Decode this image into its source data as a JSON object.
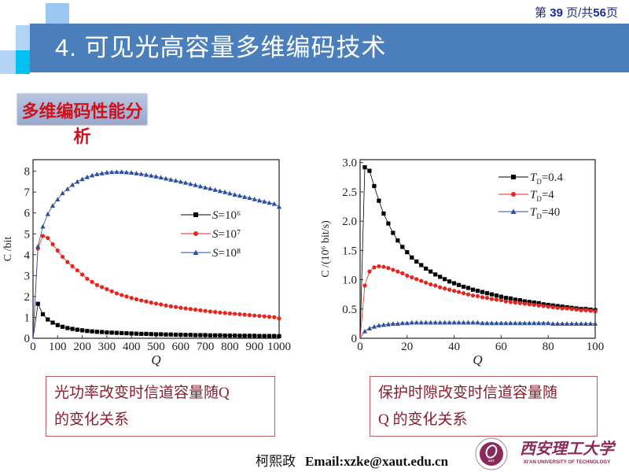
{
  "header": {
    "title": "4. 可见光高容量多维编码技术",
    "page_prefix": "第 ",
    "page_current": "39",
    "page_middle": " 页/共",
    "page_total": "56",
    "page_suffix": "页",
    "bar_color": "#4b7fbc"
  },
  "section": {
    "title": "多维编码性能分析",
    "title_color": "#d0111b"
  },
  "captions": {
    "left_line1": "光功率改变时信道容量随Q",
    "left_line2": "的变化关系",
    "right_line1": "保护时隙改变时信道容量随",
    "right_line2": "Q 的变化关系"
  },
  "footer": {
    "author": "柯熙政",
    "email": "Email:xzke@xaut.edu.cn",
    "logo_text_cn": "西安理工大学",
    "logo_text_en": "XI'AN UNIVERSITY OF TECHNOLOGY",
    "logo_badge": "XUT"
  },
  "chart_data": [
    {
      "type": "line",
      "xlabel": "Q",
      "ylabel": "C /bit",
      "xlim": [
        0,
        1000
      ],
      "ylim": [
        0,
        8.55
      ],
      "xticks": [
        0,
        100,
        200,
        300,
        400,
        500,
        600,
        700,
        800,
        900,
        1000
      ],
      "yticks": [
        0,
        1,
        2,
        3,
        4,
        5,
        6,
        7,
        8
      ],
      "grid": false,
      "legend": "right",
      "x": [
        20,
        40,
        60,
        80,
        100,
        120,
        140,
        160,
        180,
        200,
        220,
        240,
        260,
        280,
        300,
        320,
        340,
        360,
        380,
        400,
        420,
        440,
        460,
        480,
        500,
        520,
        540,
        560,
        580,
        600,
        620,
        640,
        660,
        680,
        700,
        720,
        740,
        760,
        780,
        800,
        820,
        840,
        860,
        880,
        900,
        920,
        940,
        960,
        980,
        1000
      ],
      "series": [
        {
          "name": "S=10⁶",
          "color": "#000000",
          "marker": "square",
          "values": [
            1.65,
            1.15,
            0.9,
            0.75,
            0.63,
            0.55,
            0.49,
            0.45,
            0.41,
            0.38,
            0.35,
            0.33,
            0.31,
            0.3,
            0.28,
            0.27,
            0.26,
            0.25,
            0.24,
            0.23,
            0.22,
            0.21,
            0.21,
            0.2,
            0.19,
            0.19,
            0.18,
            0.18,
            0.17,
            0.17,
            0.16,
            0.16,
            0.15,
            0.15,
            0.15,
            0.14,
            0.14,
            0.14,
            0.13,
            0.13,
            0.13,
            0.12,
            0.12,
            0.12,
            0.12,
            0.11,
            0.11,
            0.11,
            0.11,
            0.1
          ]
        },
        {
          "name": "S=10⁷",
          "color": "#e8241e",
          "marker": "circle",
          "values": [
            4.3,
            4.9,
            4.8,
            4.5,
            4.2,
            3.9,
            3.65,
            3.45,
            3.25,
            3.05,
            2.85,
            2.7,
            2.55,
            2.45,
            2.35,
            2.25,
            2.15,
            2.07,
            2.0,
            1.93,
            1.87,
            1.81,
            1.76,
            1.71,
            1.66,
            1.62,
            1.57,
            1.53,
            1.5,
            1.46,
            1.43,
            1.4,
            1.37,
            1.34,
            1.31,
            1.28,
            1.26,
            1.23,
            1.21,
            1.19,
            1.17,
            1.15,
            1.13,
            1.11,
            1.09,
            1.07,
            1.05,
            1.03,
            1.01,
            0.95
          ]
        },
        {
          "name": "S=10⁸",
          "color": "#2b4fa0",
          "marker": "triangle",
          "values": [
            4.4,
            5.35,
            5.95,
            6.35,
            6.65,
            6.95,
            7.15,
            7.35,
            7.5,
            7.62,
            7.72,
            7.8,
            7.86,
            7.9,
            7.94,
            7.96,
            7.97,
            7.97,
            7.95,
            7.93,
            7.9,
            7.87,
            7.83,
            7.79,
            7.75,
            7.7,
            7.65,
            7.6,
            7.55,
            7.5,
            7.45,
            7.39,
            7.34,
            7.28,
            7.22,
            7.17,
            7.11,
            7.05,
            7.0,
            6.94,
            6.88,
            6.83,
            6.77,
            6.72,
            6.66,
            6.6,
            6.55,
            6.49,
            6.44,
            6.3
          ]
        }
      ]
    },
    {
      "type": "line",
      "xlabel": "Q",
      "ylabel": "C /(10⁶ bit/s)",
      "xlim": [
        0,
        100
      ],
      "ylim": [
        0,
        3.05
      ],
      "xticks": [
        0,
        20,
        40,
        60,
        80,
        100
      ],
      "yticks": [
        0,
        0.5,
        1.0,
        1.5,
        2.0,
        2.5,
        3.0
      ],
      "ytick_labels": [
        "0",
        "0.5",
        "1.0",
        "1.5",
        "2.0",
        "2.5",
        "3.0"
      ],
      "grid": false,
      "legend": "top-right",
      "x": [
        2,
        4,
        6,
        8,
        10,
        12,
        14,
        16,
        18,
        20,
        22,
        24,
        26,
        28,
        30,
        32,
        34,
        36,
        38,
        40,
        42,
        44,
        46,
        48,
        50,
        52,
        54,
        56,
        58,
        60,
        62,
        64,
        66,
        68,
        70,
        72,
        74,
        76,
        78,
        80,
        82,
        84,
        86,
        88,
        90,
        92,
        94,
        96,
        98,
        100
      ],
      "series": [
        {
          "name": "T_D=0.4",
          "color": "#000000",
          "marker": "square",
          "values": [
            2.92,
            2.86,
            2.6,
            2.35,
            2.13,
            1.96,
            1.8,
            1.67,
            1.56,
            1.47,
            1.38,
            1.31,
            1.25,
            1.19,
            1.14,
            1.09,
            1.05,
            1.01,
            0.97,
            0.94,
            0.91,
            0.88,
            0.86,
            0.83,
            0.81,
            0.79,
            0.77,
            0.75,
            0.73,
            0.71,
            0.69,
            0.68,
            0.66,
            0.65,
            0.63,
            0.62,
            0.61,
            0.6,
            0.58,
            0.57,
            0.56,
            0.55,
            0.54,
            0.53,
            0.52,
            0.51,
            0.5,
            0.5,
            0.49,
            0.48
          ]
        },
        {
          "name": "T_D=4",
          "color": "#e8241e",
          "marker": "circle",
          "values": [
            0.9,
            1.14,
            1.21,
            1.23,
            1.22,
            1.2,
            1.17,
            1.14,
            1.11,
            1.07,
            1.04,
            1.01,
            0.98,
            0.95,
            0.92,
            0.9,
            0.87,
            0.85,
            0.83,
            0.81,
            0.79,
            0.77,
            0.75,
            0.73,
            0.72,
            0.7,
            0.69,
            0.67,
            0.66,
            0.65,
            0.63,
            0.62,
            0.61,
            0.6,
            0.59,
            0.58,
            0.57,
            0.56,
            0.55,
            0.54,
            0.53,
            0.52,
            0.51,
            0.51,
            0.5,
            0.49,
            0.48,
            0.48,
            0.47,
            0.46
          ]
        },
        {
          "name": "T_D=40",
          "color": "#2b4fa0",
          "marker": "triangle",
          "values": [
            0.12,
            0.17,
            0.2,
            0.22,
            0.23,
            0.24,
            0.25,
            0.25,
            0.26,
            0.26,
            0.27,
            0.27,
            0.27,
            0.27,
            0.27,
            0.27,
            0.27,
            0.27,
            0.27,
            0.27,
            0.27,
            0.27,
            0.27,
            0.27,
            0.27,
            0.26,
            0.26,
            0.26,
            0.26,
            0.26,
            0.26,
            0.26,
            0.26,
            0.26,
            0.26,
            0.26,
            0.26,
            0.26,
            0.26,
            0.26,
            0.25,
            0.25,
            0.25,
            0.25,
            0.25,
            0.25,
            0.25,
            0.25,
            0.25,
            0.25
          ]
        }
      ]
    }
  ]
}
